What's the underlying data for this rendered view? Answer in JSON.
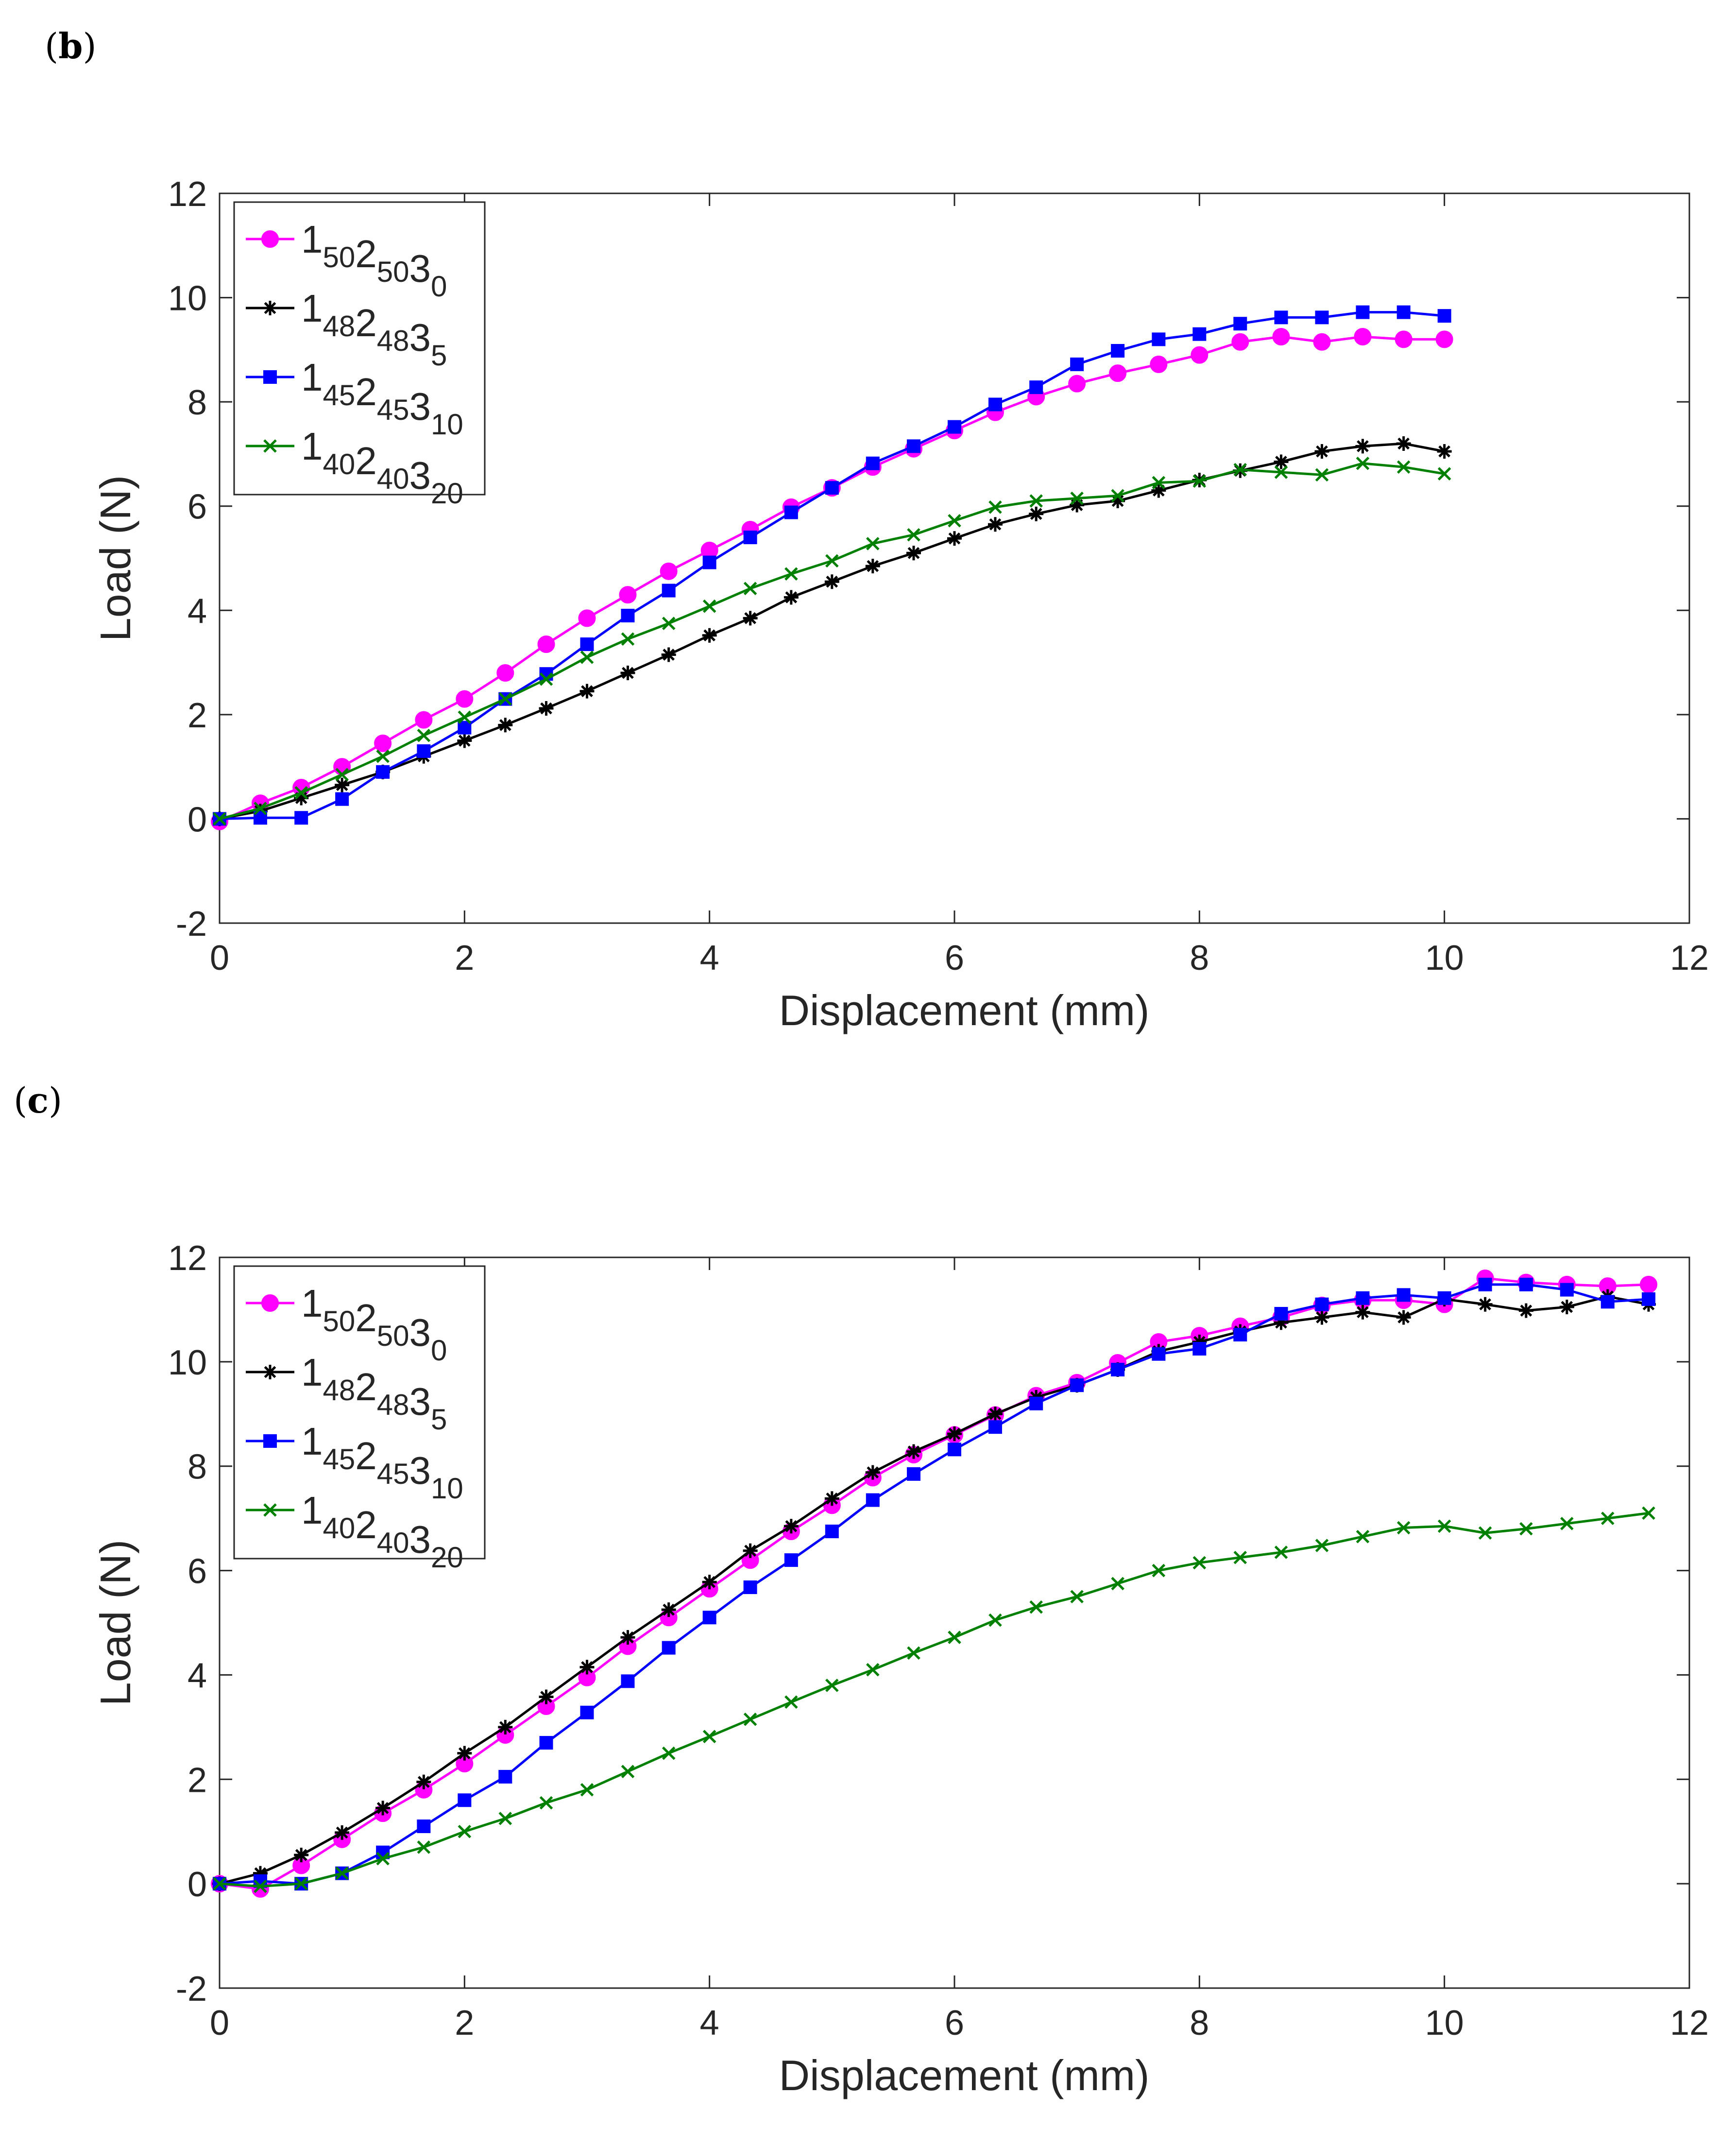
{
  "panels": [
    {
      "id": "b",
      "open": "(",
      "letter": "b",
      "close": ")"
    },
    {
      "id": "c",
      "open": "(",
      "letter": "c",
      "close": ")"
    }
  ],
  "chart_data": [
    {
      "panel": "b",
      "type": "line",
      "title": "",
      "xlabel": "Displacement (mm)",
      "ylabel": "Load (N)",
      "xlim": [
        0,
        12
      ],
      "ylim": [
        -2,
        12
      ],
      "xticks": [
        0,
        2,
        4,
        6,
        8,
        10,
        12
      ],
      "yticks": [
        -2,
        0,
        2,
        4,
        6,
        8,
        10,
        12
      ],
      "grid": false,
      "legend_position": "top-left",
      "series": [
        {
          "name": "1_50 2_50 3_0",
          "legend": [
            {
              "t": "1",
              "s": "50"
            },
            {
              "t": "2",
              "s": "50"
            },
            {
              "t": "3",
              "s": "0"
            }
          ],
          "color": "#ff00ff",
          "marker": "circle",
          "x": [
            0,
            0.333,
            0.667,
            1,
            1.333,
            1.667,
            2,
            2.333,
            2.667,
            3,
            3.333,
            3.667,
            4,
            4.333,
            4.667,
            5,
            5.333,
            5.667,
            6,
            6.333,
            6.667,
            7,
            7.333,
            7.667,
            8,
            8.333,
            8.667,
            9,
            9.333,
            9.667,
            10
          ],
          "y": [
            -0.05,
            0.3,
            0.6,
            1.0,
            1.45,
            1.9,
            2.3,
            2.8,
            3.35,
            3.85,
            4.3,
            4.75,
            5.15,
            5.55,
            5.98,
            6.35,
            6.75,
            7.1,
            7.45,
            7.8,
            8.1,
            8.35,
            8.55,
            8.72,
            8.9,
            9.15,
            9.25,
            9.15,
            9.25,
            9.2,
            9.2
          ]
        },
        {
          "name": "1_48 2_48 3_5",
          "legend": [
            {
              "t": "1",
              "s": "48"
            },
            {
              "t": "2",
              "s": "48"
            },
            {
              "t": "3",
              "s": "5"
            }
          ],
          "color": "#000000",
          "marker": "asterisk",
          "x": [
            0,
            0.333,
            0.667,
            1,
            1.333,
            1.667,
            2,
            2.333,
            2.667,
            3,
            3.333,
            3.667,
            4,
            4.333,
            4.667,
            5,
            5.333,
            5.667,
            6,
            6.333,
            6.667,
            7,
            7.333,
            7.667,
            8,
            8.333,
            8.667,
            9,
            9.333,
            9.667,
            10
          ],
          "y": [
            0,
            0.15,
            0.4,
            0.65,
            0.9,
            1.2,
            1.5,
            1.8,
            2.12,
            2.45,
            2.8,
            3.15,
            3.52,
            3.85,
            4.25,
            4.55,
            4.85,
            5.1,
            5.38,
            5.65,
            5.85,
            6.02,
            6.1,
            6.3,
            6.5,
            6.68,
            6.85,
            7.05,
            7.15,
            7.2,
            7.05
          ]
        },
        {
          "name": "1_45 2_45 3_10",
          "legend": [
            {
              "t": "1",
              "s": "45"
            },
            {
              "t": "2",
              "s": "45"
            },
            {
              "t": "3",
              "s": "10"
            }
          ],
          "color": "#0000ff",
          "marker": "square",
          "x": [
            0,
            0.333,
            0.667,
            1,
            1.333,
            1.667,
            2,
            2.333,
            2.667,
            3,
            3.333,
            3.667,
            4,
            4.333,
            4.667,
            5,
            5.333,
            5.667,
            6,
            6.333,
            6.667,
            7,
            7.333,
            7.667,
            8,
            8.333,
            8.667,
            9,
            9.333,
            9.667,
            10
          ],
          "y": [
            0,
            0.02,
            0.02,
            0.38,
            0.9,
            1.3,
            1.75,
            2.3,
            2.78,
            3.35,
            3.9,
            4.38,
            4.92,
            5.4,
            5.88,
            6.35,
            6.82,
            7.15,
            7.52,
            7.95,
            8.28,
            8.72,
            8.98,
            9.2,
            9.3,
            9.5,
            9.62,
            9.62,
            9.72,
            9.72,
            9.65
          ]
        },
        {
          "name": "1_40 2_40 3_20",
          "legend": [
            {
              "t": "1",
              "s": "40"
            },
            {
              "t": "2",
              "s": "40"
            },
            {
              "t": "3",
              "s": "20"
            }
          ],
          "color": "#008000",
          "marker": "x",
          "x": [
            0,
            0.333,
            0.667,
            1,
            1.333,
            1.667,
            2,
            2.333,
            2.667,
            3,
            3.333,
            3.667,
            4,
            4.333,
            4.667,
            5,
            5.333,
            5.667,
            6,
            6.333,
            6.667,
            7,
            7.333,
            7.667,
            8,
            8.333,
            8.667,
            9,
            9.333,
            9.667,
            10
          ],
          "y": [
            0,
            0.2,
            0.5,
            0.85,
            1.2,
            1.6,
            1.95,
            2.3,
            2.68,
            3.1,
            3.45,
            3.75,
            4.08,
            4.42,
            4.7,
            4.95,
            5.28,
            5.45,
            5.72,
            5.98,
            6.1,
            6.15,
            6.2,
            6.45,
            6.48,
            6.7,
            6.65,
            6.6,
            6.82,
            6.75,
            6.62
          ]
        }
      ]
    },
    {
      "panel": "c",
      "type": "line",
      "title": "",
      "xlabel": "Displacement (mm)",
      "ylabel": "Load (N)",
      "xlim": [
        0,
        12
      ],
      "ylim": [
        -2,
        12
      ],
      "xticks": [
        0,
        2,
        4,
        6,
        8,
        10,
        12
      ],
      "yticks": [
        -2,
        0,
        2,
        4,
        6,
        8,
        10,
        12
      ],
      "grid": false,
      "legend_position": "top-left",
      "series": [
        {
          "name": "1_50 2_50 3_0",
          "legend": [
            {
              "t": "1",
              "s": "50"
            },
            {
              "t": "2",
              "s": "50"
            },
            {
              "t": "3",
              "s": "0"
            }
          ],
          "color": "#ff00ff",
          "marker": "circle",
          "x": [
            0,
            0.333,
            0.667,
            1,
            1.333,
            1.667,
            2,
            2.333,
            2.667,
            3,
            3.333,
            3.667,
            4,
            4.333,
            4.667,
            5,
            5.333,
            5.667,
            6,
            6.333,
            6.667,
            7,
            7.333,
            7.667,
            8,
            8.333,
            8.667,
            9,
            9.333,
            9.667,
            10,
            10.333,
            10.667,
            11,
            11.333,
            11.667
          ],
          "y": [
            0,
            -0.1,
            0.35,
            0.85,
            1.35,
            1.8,
            2.3,
            2.85,
            3.4,
            3.95,
            4.55,
            5.1,
            5.65,
            6.2,
            6.75,
            7.25,
            7.78,
            8.22,
            8.6,
            8.98,
            9.35,
            9.6,
            9.98,
            10.38,
            10.5,
            10.68,
            10.85,
            11.08,
            11.18,
            11.18,
            11.1,
            11.6,
            11.52,
            11.48,
            11.45,
            11.48
          ]
        },
        {
          "name": "1_48 2_48 3_5",
          "legend": [
            {
              "t": "1",
              "s": "48"
            },
            {
              "t": "2",
              "s": "48"
            },
            {
              "t": "3",
              "s": "5"
            }
          ],
          "color": "#000000",
          "marker": "asterisk",
          "x": [
            0,
            0.333,
            0.667,
            1,
            1.333,
            1.667,
            2,
            2.333,
            2.667,
            3,
            3.333,
            3.667,
            4,
            4.333,
            4.667,
            5,
            5.333,
            5.667,
            6,
            6.333,
            6.667,
            7,
            7.333,
            7.667,
            8,
            8.333,
            8.667,
            9,
            9.333,
            9.667,
            10,
            10.333,
            10.667,
            11,
            11.333,
            11.667
          ],
          "y": [
            0,
            0.2,
            0.55,
            0.98,
            1.45,
            1.95,
            2.5,
            3.0,
            3.58,
            4.15,
            4.72,
            5.25,
            5.78,
            6.38,
            6.85,
            7.38,
            7.88,
            8.28,
            8.62,
            9.0,
            9.32,
            9.55,
            9.85,
            10.2,
            10.38,
            10.58,
            10.75,
            10.85,
            10.95,
            10.85,
            11.2,
            11.1,
            10.98,
            11.05,
            11.25,
            11.1
          ]
        },
        {
          "name": "1_45 2_45 3_10",
          "legend": [
            {
              "t": "1",
              "s": "45"
            },
            {
              "t": "2",
              "s": "45"
            },
            {
              "t": "3",
              "s": "10"
            }
          ],
          "color": "#0000ff",
          "marker": "square",
          "x": [
            0,
            0.333,
            0.667,
            1,
            1.333,
            1.667,
            2,
            2.333,
            2.667,
            3,
            3.333,
            3.667,
            4,
            4.333,
            4.667,
            5,
            5.333,
            5.667,
            6,
            6.333,
            6.667,
            7,
            7.333,
            7.667,
            8,
            8.333,
            8.667,
            9,
            9.333,
            9.667,
            10,
            10.333,
            10.667,
            11,
            11.333,
            11.667
          ],
          "y": [
            0,
            0.05,
            0.0,
            0.2,
            0.6,
            1.1,
            1.6,
            2.05,
            2.7,
            3.28,
            3.88,
            4.52,
            5.1,
            5.68,
            6.2,
            6.75,
            7.35,
            7.85,
            8.32,
            8.75,
            9.2,
            9.55,
            9.85,
            10.15,
            10.25,
            10.52,
            10.92,
            11.1,
            11.22,
            11.28,
            11.22,
            11.48,
            11.48,
            11.38,
            11.15,
            11.2
          ]
        },
        {
          "name": "1_40 2_40 3_20",
          "legend": [
            {
              "t": "1",
              "s": "40"
            },
            {
              "t": "2",
              "s": "40"
            },
            {
              "t": "3",
              "s": "20"
            }
          ],
          "color": "#008000",
          "marker": "x",
          "x": [
            0,
            0.333,
            0.667,
            1,
            1.333,
            1.667,
            2,
            2.333,
            2.667,
            3,
            3.333,
            3.667,
            4,
            4.333,
            4.667,
            5,
            5.333,
            5.667,
            6,
            6.333,
            6.667,
            7,
            7.333,
            7.667,
            8,
            8.333,
            8.667,
            9,
            9.333,
            9.667,
            10,
            10.333,
            10.667,
            11,
            11.333,
            11.667
          ],
          "y": [
            0,
            -0.05,
            0.0,
            0.2,
            0.48,
            0.7,
            1.0,
            1.25,
            1.55,
            1.8,
            2.15,
            2.5,
            2.82,
            3.15,
            3.48,
            3.8,
            4.1,
            4.42,
            4.72,
            5.05,
            5.3,
            5.5,
            5.75,
            6.0,
            6.15,
            6.25,
            6.35,
            6.48,
            6.65,
            6.82,
            6.85,
            6.72,
            6.8,
            6.9,
            7.0,
            7.1
          ]
        }
      ]
    }
  ]
}
